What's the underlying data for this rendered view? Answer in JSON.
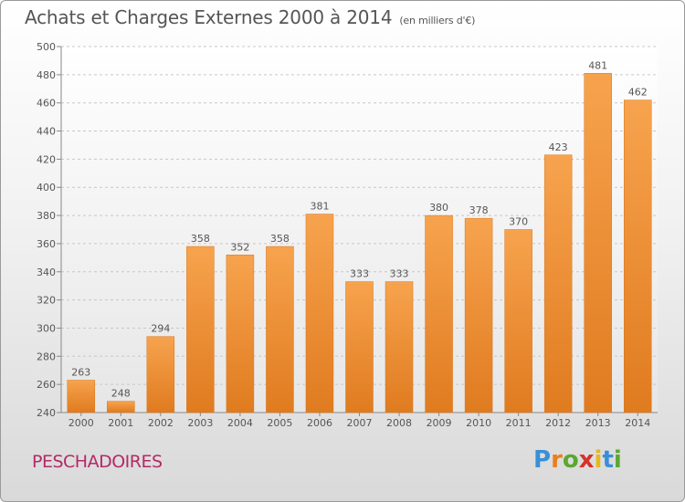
{
  "header": {
    "title": "Achats et Charges Externes 2000 à 2014",
    "subtitle": "(en milliers d'€)"
  },
  "footer": {
    "town": "PESCHADOIRES",
    "brand": "Proxiti",
    "brand_colors": [
      "#3a8fd6",
      "#e8801c",
      "#5aa832",
      "#d6332a",
      "#e8b81c",
      "#3a8fd6",
      "#5aa832"
    ]
  },
  "colors": {
    "bar_light": "#f7a34e",
    "bar_dark": "#e07b1f",
    "grid": "#c8c8c8",
    "text": "#555555",
    "town": "#b32a66"
  },
  "chart_data": {
    "type": "bar",
    "categories": [
      "2000",
      "2001",
      "2002",
      "2003",
      "2004",
      "2005",
      "2006",
      "2007",
      "2008",
      "2009",
      "2010",
      "2011",
      "2012",
      "2013",
      "2014"
    ],
    "values": [
      263,
      248,
      294,
      358,
      352,
      358,
      381,
      333,
      333,
      380,
      378,
      370,
      423,
      481,
      462
    ],
    "ylim": [
      240,
      500
    ],
    "yticks": [
      240,
      260,
      280,
      300,
      320,
      340,
      360,
      380,
      400,
      420,
      440,
      460,
      480,
      500
    ],
    "grid": true,
    "xlabel": "",
    "ylabel": ""
  }
}
